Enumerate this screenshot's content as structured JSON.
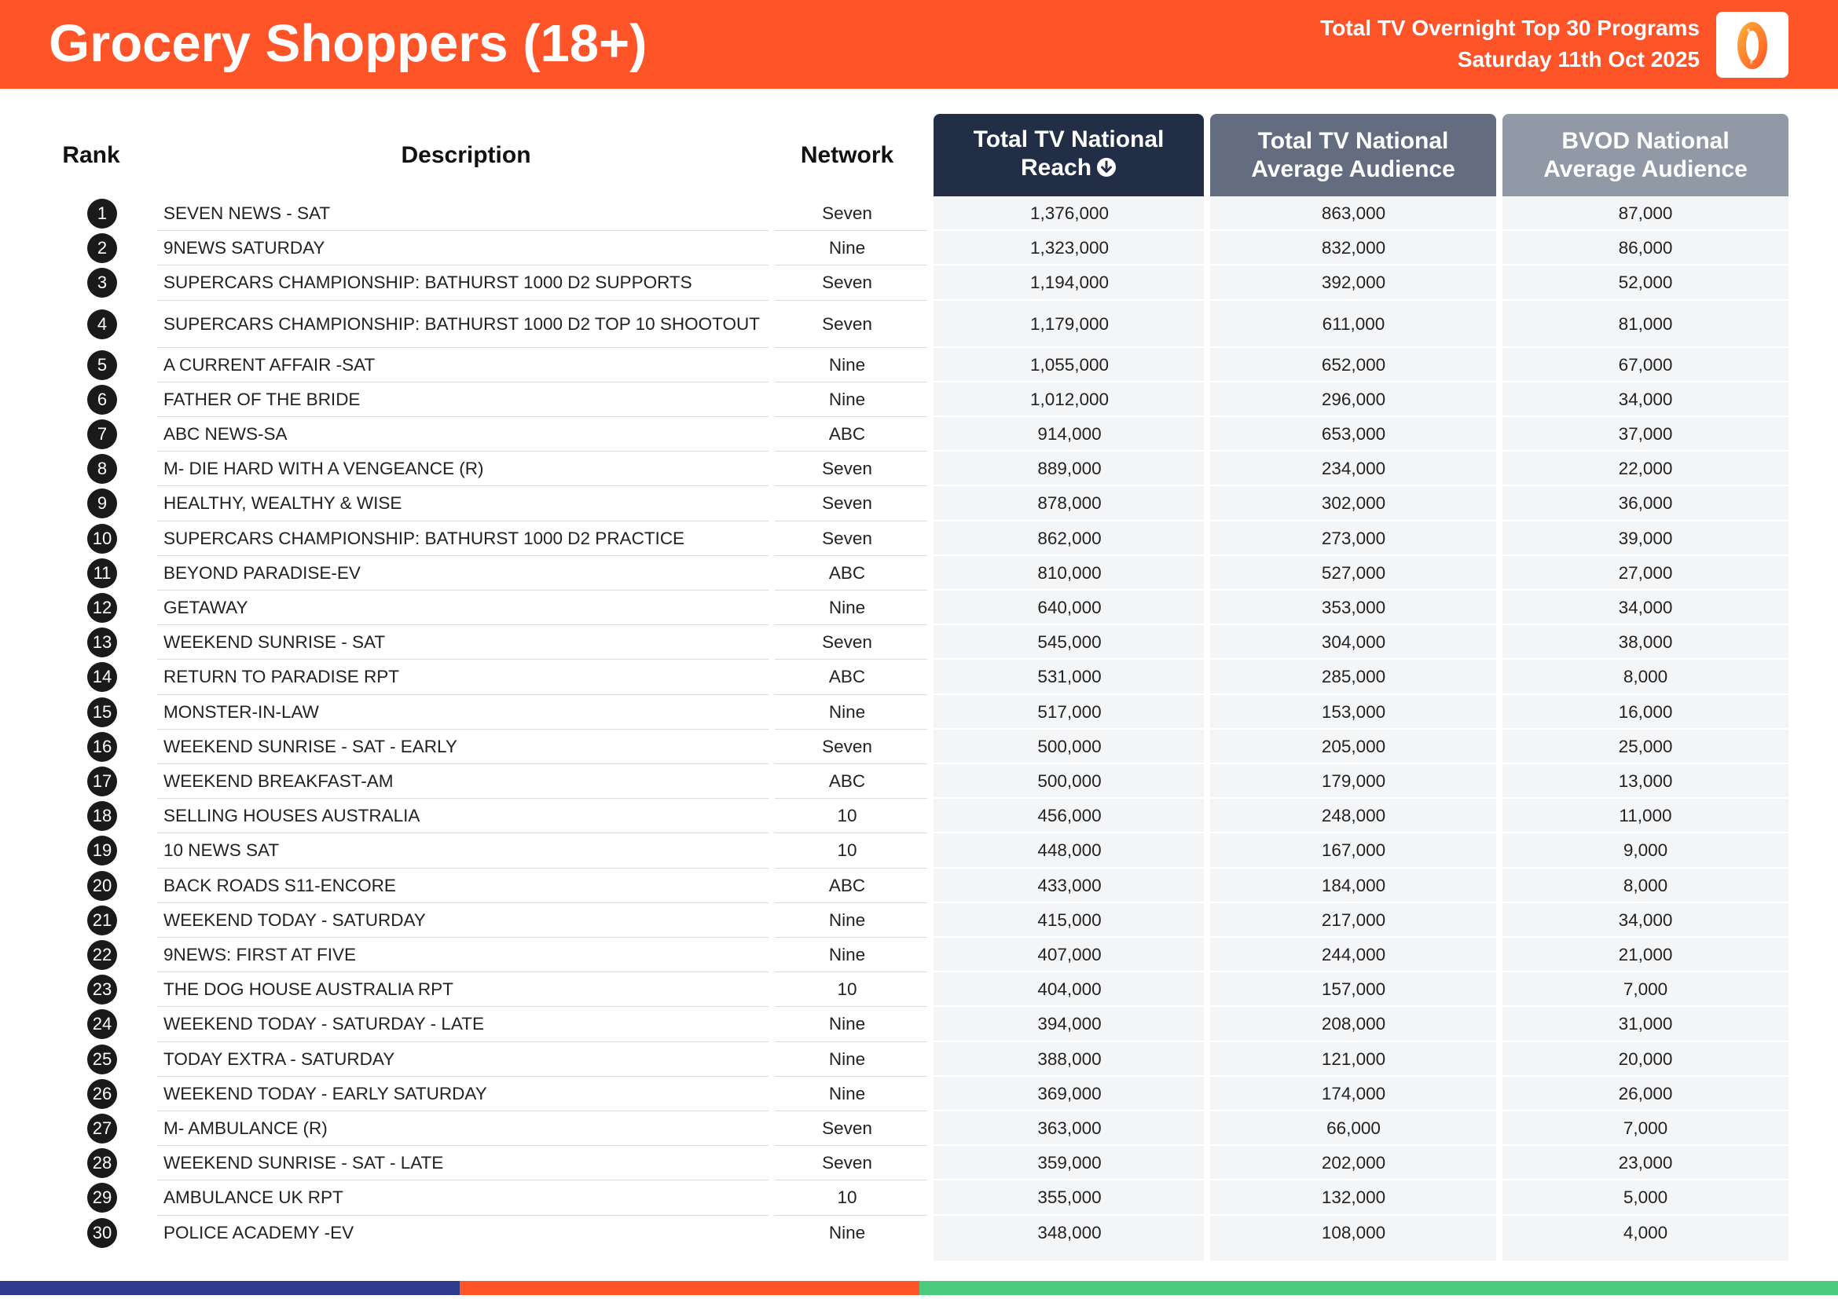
{
  "header": {
    "title": "Grocery Shoppers (18+)",
    "subtitle_line1": "Total TV Overnight Top 30 Programs",
    "subtitle_line2": "Saturday 11th Oct 2025",
    "logo_icon": "oztam-logo-icon"
  },
  "columns": {
    "rank": "Rank",
    "description": "Description",
    "network": "Network",
    "reach_line1": "Total TV National",
    "reach_line2": "Reach",
    "avg_line1": "Total TV National",
    "avg_line2": "Average Audience",
    "bvod_line1": "BVOD National",
    "bvod_line2": "Average Audience",
    "sort_icon": "sort-descending-icon"
  },
  "colors": {
    "header_orange": "#FF5328",
    "reach_header": "#222E45",
    "avg_header": "#646C80",
    "bvod_header": "#9198A6",
    "footer_blue": "#2E3A8C",
    "footer_orange": "#FF5328",
    "footer_green": "#4CCB7E"
  },
  "rows": [
    {
      "rank": "1",
      "description": "SEVEN NEWS - SAT",
      "network": "Seven",
      "reach": "1,376,000",
      "avg": "863,000",
      "bvod": "87,000"
    },
    {
      "rank": "2",
      "description": "9NEWS SATURDAY",
      "network": "Nine",
      "reach": "1,323,000",
      "avg": "832,000",
      "bvod": "86,000"
    },
    {
      "rank": "3",
      "description": "SUPERCARS CHAMPIONSHIP: BATHURST 1000 D2 SUPPORTS",
      "network": "Seven",
      "reach": "1,194,000",
      "avg": "392,000",
      "bvod": "52,000"
    },
    {
      "rank": "4",
      "description": "SUPERCARS CHAMPIONSHIP: BATHURST 1000 D2 TOP 10 SHOOTOUT",
      "network": "Seven",
      "reach": "1,179,000",
      "avg": "611,000",
      "bvod": "81,000"
    },
    {
      "rank": "5",
      "description": "A CURRENT AFFAIR -SAT",
      "network": "Nine",
      "reach": "1,055,000",
      "avg": "652,000",
      "bvod": "67,000"
    },
    {
      "rank": "6",
      "description": "FATHER OF THE BRIDE",
      "network": "Nine",
      "reach": "1,012,000",
      "avg": "296,000",
      "bvod": "34,000"
    },
    {
      "rank": "7",
      "description": "ABC NEWS-SA",
      "network": "ABC",
      "reach": "914,000",
      "avg": "653,000",
      "bvod": "37,000"
    },
    {
      "rank": "8",
      "description": "M- DIE HARD WITH A VENGEANCE (R)",
      "network": "Seven",
      "reach": "889,000",
      "avg": "234,000",
      "bvod": "22,000"
    },
    {
      "rank": "9",
      "description": "HEALTHY, WEALTHY & WISE",
      "network": "Seven",
      "reach": "878,000",
      "avg": "302,000",
      "bvod": "36,000"
    },
    {
      "rank": "10",
      "description": "SUPERCARS CHAMPIONSHIP: BATHURST 1000 D2 PRACTICE",
      "network": "Seven",
      "reach": "862,000",
      "avg": "273,000",
      "bvod": "39,000"
    },
    {
      "rank": "11",
      "description": "BEYOND PARADISE-EV",
      "network": "ABC",
      "reach": "810,000",
      "avg": "527,000",
      "bvod": "27,000"
    },
    {
      "rank": "12",
      "description": "GETAWAY",
      "network": "Nine",
      "reach": "640,000",
      "avg": "353,000",
      "bvod": "34,000"
    },
    {
      "rank": "13",
      "description": "WEEKEND SUNRISE - SAT",
      "network": "Seven",
      "reach": "545,000",
      "avg": "304,000",
      "bvod": "38,000"
    },
    {
      "rank": "14",
      "description": "RETURN TO PARADISE RPT",
      "network": "ABC",
      "reach": "531,000",
      "avg": "285,000",
      "bvod": "8,000"
    },
    {
      "rank": "15",
      "description": "MONSTER-IN-LAW",
      "network": "Nine",
      "reach": "517,000",
      "avg": "153,000",
      "bvod": "16,000"
    },
    {
      "rank": "16",
      "description": "WEEKEND SUNRISE - SAT - EARLY",
      "network": "Seven",
      "reach": "500,000",
      "avg": "205,000",
      "bvod": "25,000"
    },
    {
      "rank": "17",
      "description": "WEEKEND BREAKFAST-AM",
      "network": "ABC",
      "reach": "500,000",
      "avg": "179,000",
      "bvod": "13,000"
    },
    {
      "rank": "18",
      "description": "SELLING HOUSES AUSTRALIA",
      "network": "10",
      "reach": "456,000",
      "avg": "248,000",
      "bvod": "11,000"
    },
    {
      "rank": "19",
      "description": "10 NEWS SAT",
      "network": "10",
      "reach": "448,000",
      "avg": "167,000",
      "bvod": "9,000"
    },
    {
      "rank": "20",
      "description": "BACK ROADS S11-ENCORE",
      "network": "ABC",
      "reach": "433,000",
      "avg": "184,000",
      "bvod": "8,000"
    },
    {
      "rank": "21",
      "description": "WEEKEND TODAY - SATURDAY",
      "network": "Nine",
      "reach": "415,000",
      "avg": "217,000",
      "bvod": "34,000"
    },
    {
      "rank": "22",
      "description": "9NEWS: FIRST AT FIVE",
      "network": "Nine",
      "reach": "407,000",
      "avg": "244,000",
      "bvod": "21,000"
    },
    {
      "rank": "23",
      "description": "THE DOG HOUSE AUSTRALIA RPT",
      "network": "10",
      "reach": "404,000",
      "avg": "157,000",
      "bvod": "7,000"
    },
    {
      "rank": "24",
      "description": "WEEKEND TODAY - SATURDAY - LATE",
      "network": "Nine",
      "reach": "394,000",
      "avg": "208,000",
      "bvod": "31,000"
    },
    {
      "rank": "25",
      "description": "TODAY EXTRA - SATURDAY",
      "network": "Nine",
      "reach": "388,000",
      "avg": "121,000",
      "bvod": "20,000"
    },
    {
      "rank": "26",
      "description": "WEEKEND TODAY - EARLY SATURDAY",
      "network": "Nine",
      "reach": "369,000",
      "avg": "174,000",
      "bvod": "26,000"
    },
    {
      "rank": "27",
      "description": "M- AMBULANCE (R)",
      "network": "Seven",
      "reach": "363,000",
      "avg": "66,000",
      "bvod": "7,000"
    },
    {
      "rank": "28",
      "description": "WEEKEND SUNRISE - SAT - LATE",
      "network": "Seven",
      "reach": "359,000",
      "avg": "202,000",
      "bvod": "23,000"
    },
    {
      "rank": "29",
      "description": "AMBULANCE UK RPT",
      "network": "10",
      "reach": "355,000",
      "avg": "132,000",
      "bvod": "5,000"
    },
    {
      "rank": "30",
      "description": "POLICE ACADEMY -EV",
      "network": "Nine",
      "reach": "348,000",
      "avg": "108,000",
      "bvod": "4,000"
    }
  ]
}
